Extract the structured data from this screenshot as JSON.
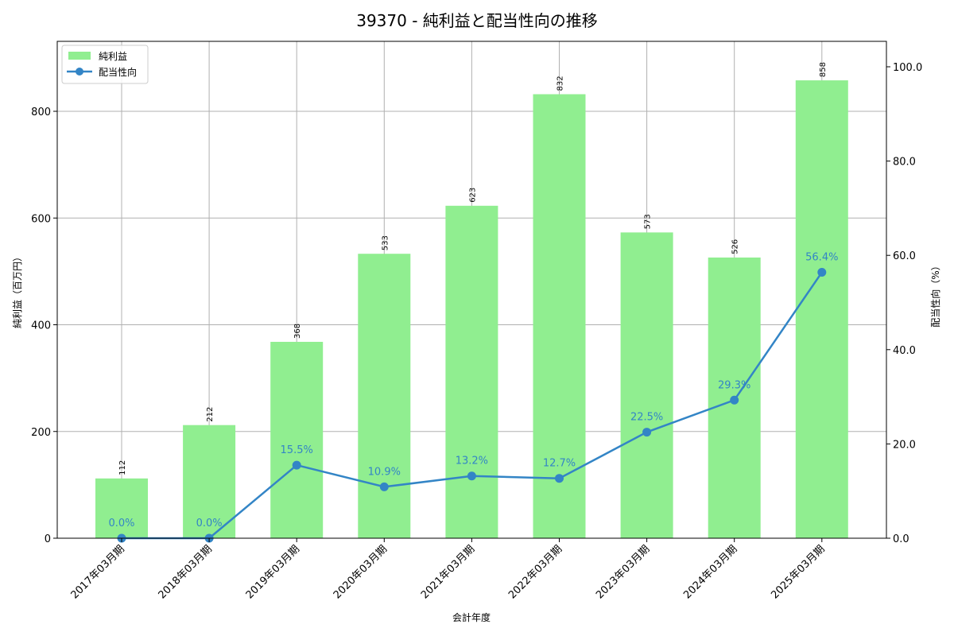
{
  "chart_data": {
    "type": "bar+line",
    "title": "39370 - 純利益と配当性向の推移",
    "xlabel": "会計年度",
    "ylabel": "純利益（百万円）",
    "y2label": "配当性向（%）",
    "categories": [
      "2017年03月期",
      "2018年03月期",
      "2019年03月期",
      "2020年03月期",
      "2021年03月期",
      "2022年03月期",
      "2023年03月期",
      "2024年03月期",
      "2025年03月期"
    ],
    "series": [
      {
        "name": "純利益",
        "type": "bar",
        "axis": "left",
        "color": "#90ee90",
        "values": [
          112,
          212,
          368,
          533,
          623,
          832,
          573,
          526,
          858
        ]
      },
      {
        "name": "配当性向",
        "type": "line",
        "axis": "right",
        "color": "#3385c6",
        "values": [
          0.0,
          0.0,
          15.5,
          10.9,
          13.2,
          12.7,
          22.5,
          29.3,
          56.4
        ],
        "labels": [
          "0.0%",
          "0.0%",
          "15.5%",
          "10.9%",
          "13.2%",
          "12.7%",
          "22.5%",
          "29.3%",
          "56.4%"
        ]
      }
    ],
    "ylim": [
      0,
      930
    ],
    "y2lim": [
      0,
      105
    ],
    "yticks": [
      "0",
      "200",
      "400",
      "600",
      "800"
    ],
    "y2ticks": [
      "0.0",
      "20.0",
      "40.0",
      "60.0",
      "80.0",
      "100.0"
    ],
    "grid": true,
    "legend_position": "upper left",
    "legend": [
      "純利益",
      "配当性向"
    ]
  }
}
